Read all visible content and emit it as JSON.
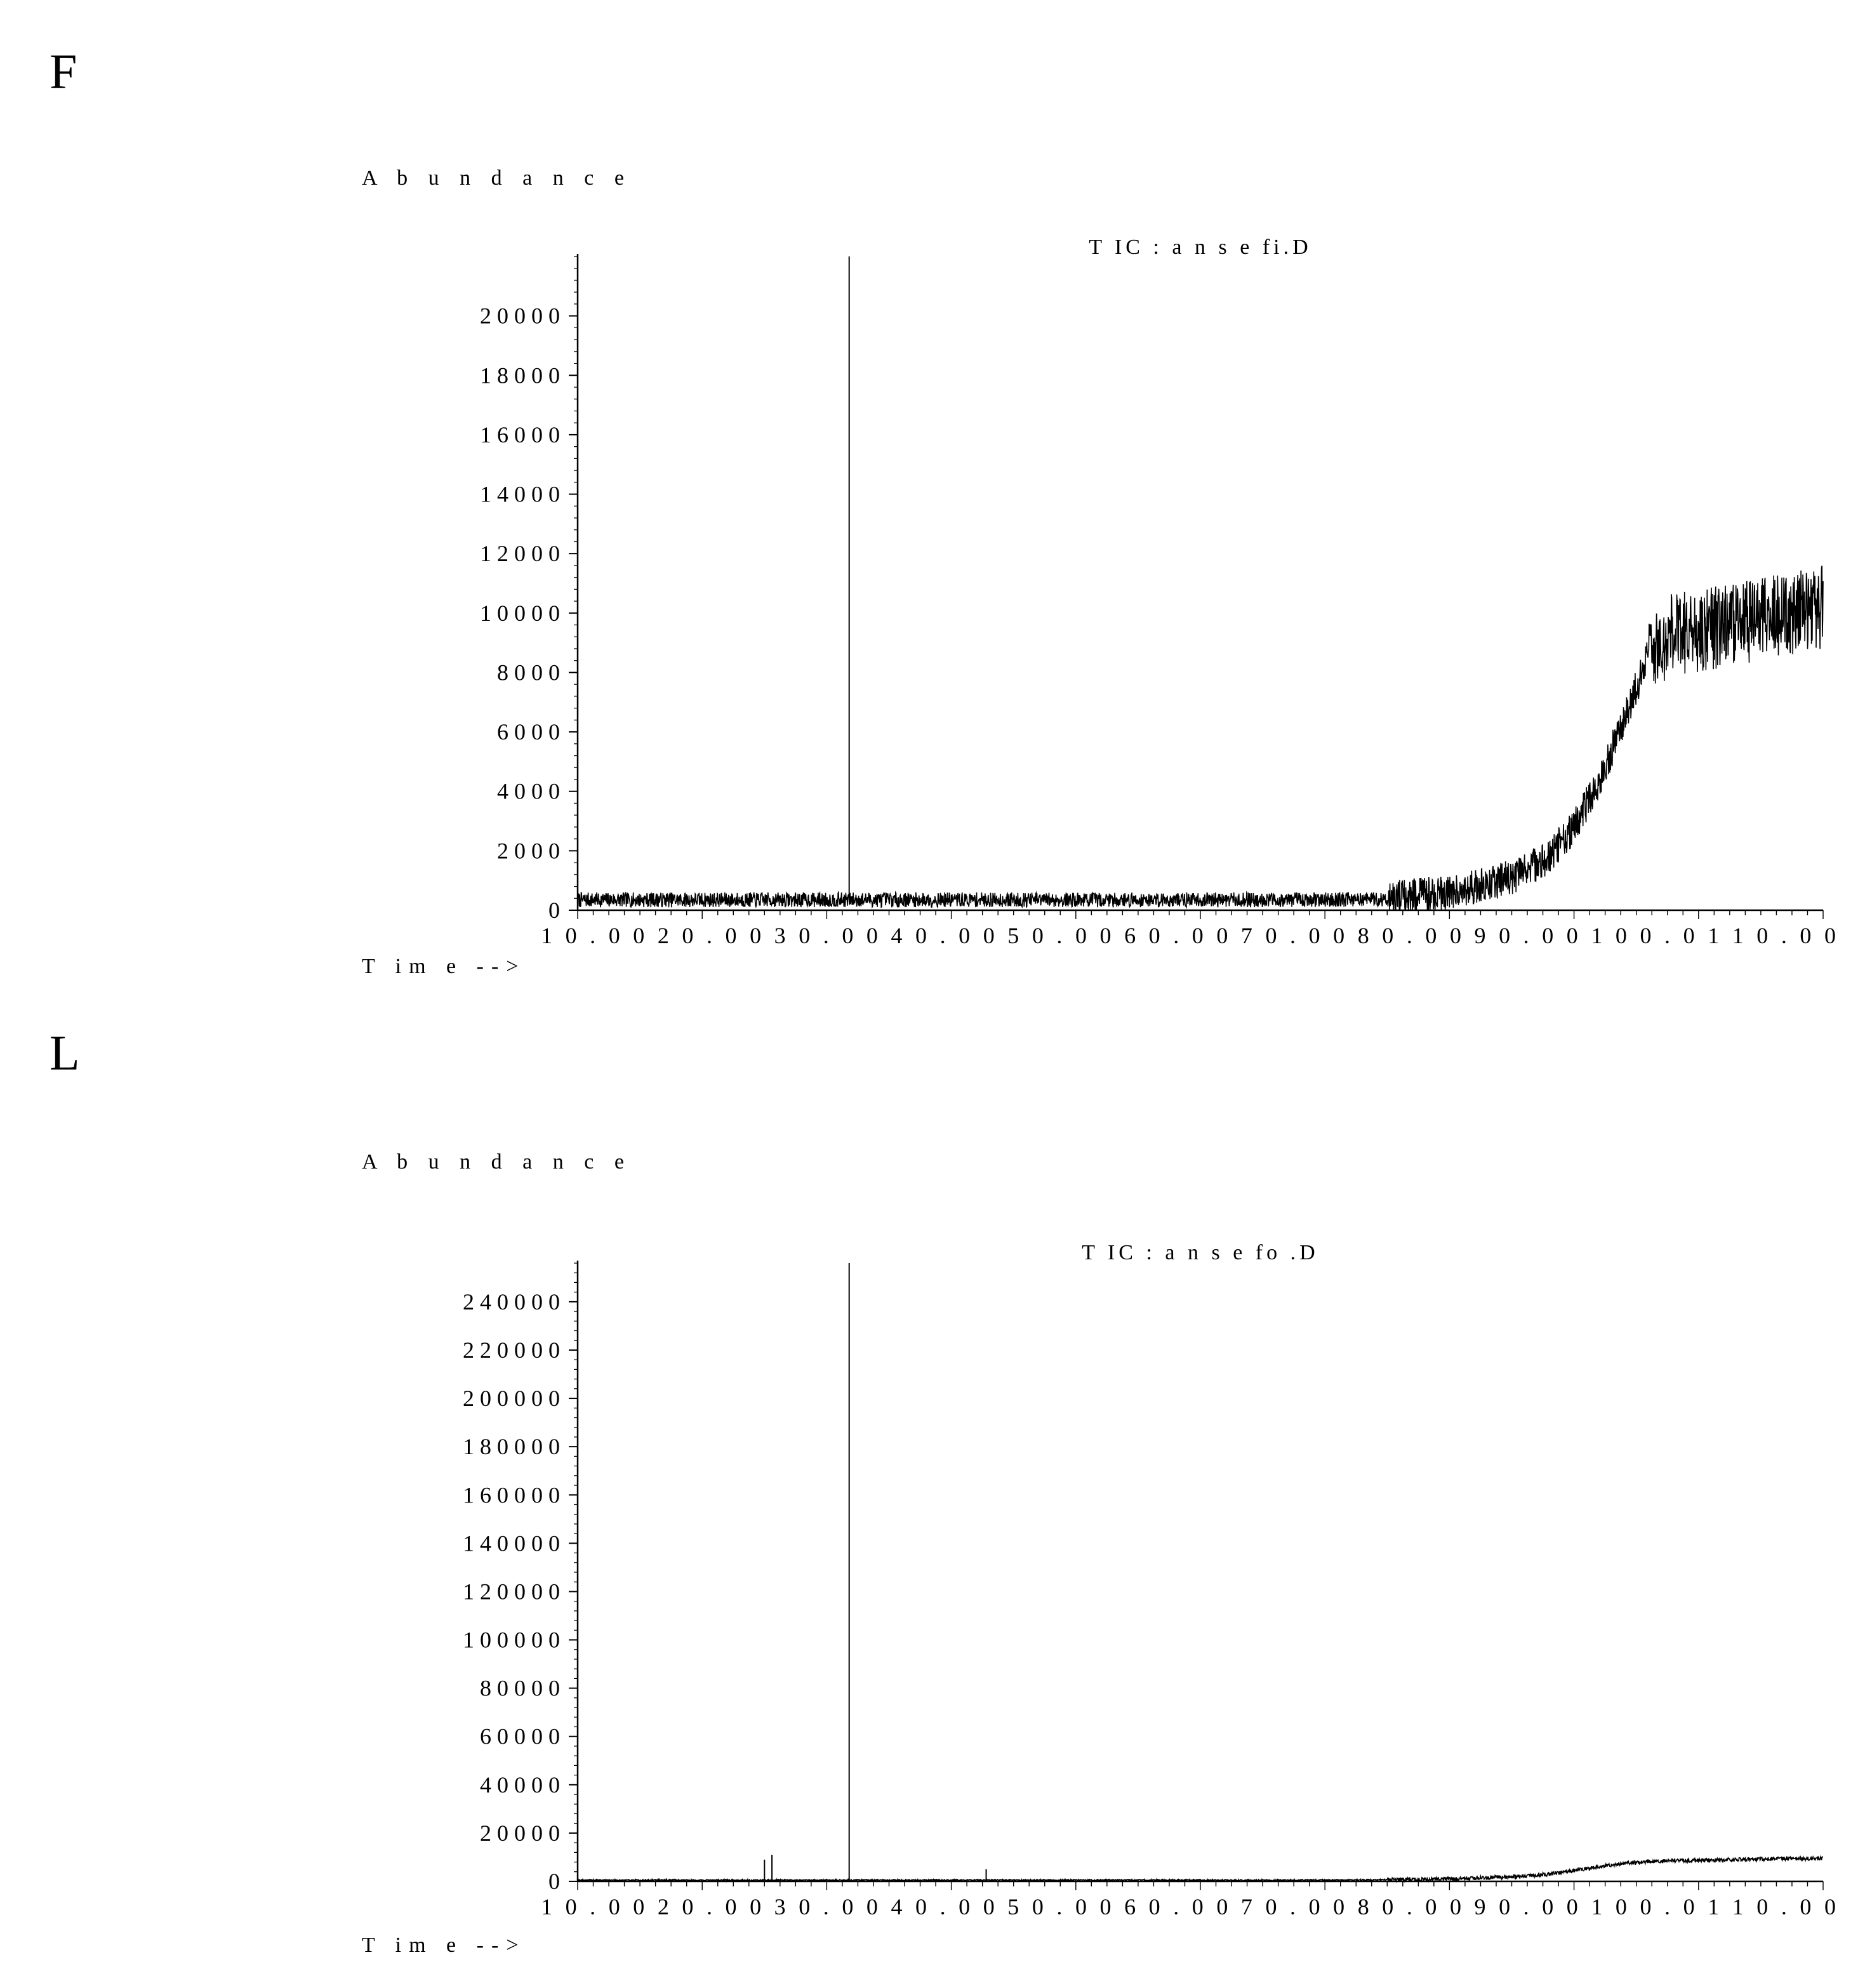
{
  "chart_data": [
    {
      "panel": "F",
      "type": "line",
      "title": "T IC : a n s e fi.D",
      "ylabel": "A b u n d a n c e",
      "xlabel": "T im e -->",
      "ylim": [
        0,
        22000
      ],
      "y_ticks": [
        0,
        2000,
        4000,
        6000,
        8000,
        10000,
        12000,
        14000,
        16000,
        18000,
        20000
      ],
      "y_tick_labels": [
        "0",
        "2 0 0 0",
        "4 0 0 0",
        "6 0 0 0",
        "8 0 0 0",
        "1 0 0 0 0",
        "1 2 0 0 0",
        "1 4 0 0 0",
        "1 6 0 0 0",
        "1 8 0 0 0",
        "2 0 0 0 0"
      ],
      "x_tick_text": "1 0 . 0 0 2 0 . 0 0 3 0 . 0 0 4 0 . 0 0 5 0 . 0 0 6 0 . 0 0 7 0 . 0 0 8 0 . 0 0 9 0 . 0 0 1 0 0 . 0 1 1 0 . 0 0",
      "series": [
        {
          "x": [
            0,
            5,
            10,
            15,
            20,
            21.1,
            21.8,
            25,
            30,
            40,
            50,
            60,
            65,
            70,
            75,
            78,
            80,
            82,
            84,
            86,
            88,
            90,
            93,
            96,
            100
          ],
          "y": [
            350,
            350,
            350,
            350,
            350,
            350,
            350,
            350,
            350,
            350,
            350,
            350,
            380,
            600,
            1100,
            1800,
            2800,
            4300,
            6400,
            8600,
            9300,
            9400,
            9600,
            9900,
            10200
          ]
        }
      ],
      "peaks": [
        {
          "x": 21.8,
          "y": 22000
        }
      ],
      "noise_band": [
        {
          "x0": 0,
          "x1": 65,
          "amp": 250
        },
        {
          "x0": 65,
          "x1": 86,
          "amp": 600
        },
        {
          "x0": 86,
          "x1": 100,
          "amp": 1400
        }
      ]
    },
    {
      "panel": "L",
      "type": "line",
      "title": "T IC : a n s e fo .D",
      "ylabel": "A b u n d a n c e",
      "xlabel": "T im e -->",
      "ylim": [
        0,
        256000
      ],
      "y_ticks": [
        0,
        20000,
        40000,
        60000,
        80000,
        100000,
        120000,
        140000,
        160000,
        180000,
        200000,
        220000,
        240000
      ],
      "y_tick_labels": [
        "0",
        "2 0 0 0 0",
        "4 0 0 0 0",
        "6 0 0 0 0",
        "8 0 0 0 0",
        "1 0 0 0 0 0",
        "1 2 0 0 0 0",
        "1 4 0 0 0 0",
        "1 6 0 0 0 0",
        "1 8 0 0 0 0",
        "2 0 0 0 0 0",
        "2 2 0 0 0 0",
        "2 4 0 0 0 0"
      ],
      "x_tick_text": "1 0 . 0 0 2 0 . 0 0 3 0 . 0 0 4 0 . 0 0 5 0 . 0 0 6 0 . 0 0 7 0 . 0 0 8 0 . 0 0 9 0 . 0 0 1 0 0 . 0 1 1 0 . 0 0",
      "series": [
        {
          "x": [
            0,
            10,
            20,
            30,
            40,
            50,
            60,
            65,
            70,
            75,
            78,
            80,
            82,
            84,
            86,
            88,
            90,
            93,
            96,
            100
          ],
          "y": [
            500,
            500,
            500,
            500,
            500,
            500,
            500,
            600,
            1000,
            1800,
            3000,
            4500,
            6000,
            7500,
            8200,
            8600,
            8700,
            9000,
            9300,
            9600
          ]
        }
      ],
      "peaks": [
        {
          "x": 15.0,
          "y": 9000
        },
        {
          "x": 15.6,
          "y": 11000
        },
        {
          "x": 21.8,
          "y": 256000
        },
        {
          "x": 32.8,
          "y": 5000
        }
      ],
      "noise_band": [
        {
          "x0": 0,
          "x1": 65,
          "amp": 300
        },
        {
          "x0": 65,
          "x1": 100,
          "amp": 800
        }
      ]
    }
  ],
  "panels": {
    "F": {
      "letter": "F"
    },
    "L": {
      "letter": "L"
    }
  }
}
